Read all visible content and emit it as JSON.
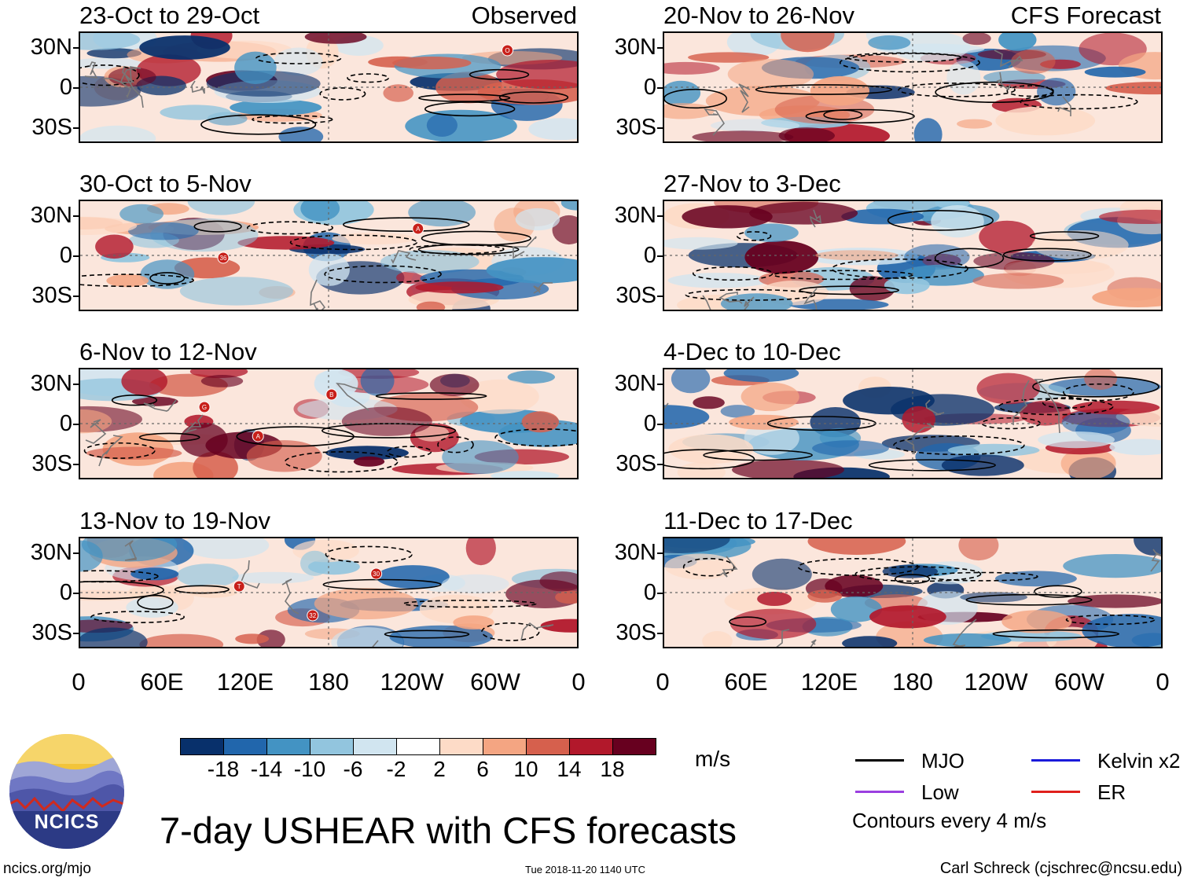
{
  "chart_data": {
    "type": "heatmap",
    "title": "7-day USHEAR with CFS forecasts",
    "units": "m/s",
    "y_ticks": [
      "30N",
      "0",
      "30S"
    ],
    "x_ticks": [
      "0",
      "60E",
      "120E",
      "180",
      "120W",
      "60W",
      "0"
    ],
    "panels": [
      {
        "title": "23-Oct to 29-Oct",
        "tag": "Observed",
        "column": "left",
        "row": 0,
        "storms": [
          "O"
        ]
      },
      {
        "title": "30-Oct to 5-Nov",
        "tag": "",
        "column": "left",
        "row": 1,
        "storms": [
          "A",
          "36"
        ]
      },
      {
        "title": "6-Nov to 12-Nov",
        "tag": "",
        "column": "left",
        "row": 2,
        "storms": [
          "G",
          "A",
          "B"
        ]
      },
      {
        "title": "13-Nov to 19-Nov",
        "tag": "",
        "column": "left",
        "row": 3,
        "storms": [
          "T",
          "32",
          "30"
        ]
      },
      {
        "title": "20-Nov to 26-Nov",
        "tag": "CFS Forecast",
        "column": "right",
        "row": 0,
        "storms": []
      },
      {
        "title": "27-Nov to 3-Dec",
        "tag": "",
        "column": "right",
        "row": 1,
        "storms": []
      },
      {
        "title": "4-Dec to 10-Dec",
        "tag": "",
        "column": "right",
        "row": 2,
        "storms": []
      },
      {
        "title": "11-Dec to 17-Dec",
        "tag": "",
        "column": "right",
        "row": 3,
        "storms": []
      }
    ],
    "colorbar": {
      "ticks": [
        "-18",
        "-14",
        "-10",
        "-6",
        "-2",
        "2",
        "6",
        "10",
        "14",
        "18"
      ],
      "colors": [
        "#08306b",
        "#2166ac",
        "#4393c3",
        "#92c5de",
        "#d1e5f0",
        "#ffffff",
        "#fddbc7",
        "#f4a582",
        "#d6604d",
        "#b2182b",
        "#67001f"
      ]
    },
    "legend": [
      {
        "label": "MJO",
        "color": "#000000"
      },
      {
        "label": "Kelvin x2",
        "color": "#1a1adb"
      },
      {
        "label": "Low",
        "color": "#9b3fe0"
      },
      {
        "label": "ER",
        "color": "#e0201c"
      }
    ],
    "contour_note": "Contours every 4 m/s"
  },
  "footer": {
    "logo_text": "NCICS",
    "url": "ncics.org/mjo",
    "timestamp": "Tue 2018-11-20 1140 UTC",
    "author": "Carl Schreck (cjschrec@ncsu.edu)"
  }
}
